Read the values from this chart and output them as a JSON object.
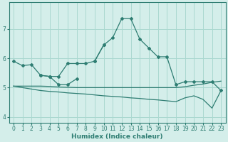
{
  "xlabel": "Humidex (Indice chaleur)",
  "bg_color": "#d4eeea",
  "grid_color": "#aad8d0",
  "line_color": "#2e7d72",
  "xlim": [
    -0.5,
    23.5
  ],
  "ylim": [
    3.8,
    7.9
  ],
  "yticks": [
    4,
    5,
    6,
    7
  ],
  "xticks": [
    0,
    1,
    2,
    3,
    4,
    5,
    6,
    7,
    8,
    9,
    10,
    11,
    12,
    13,
    14,
    15,
    16,
    17,
    18,
    19,
    20,
    21,
    22,
    23
  ],
  "series0_x": [
    0,
    1,
    2,
    3,
    4,
    5,
    6,
    7,
    8,
    9,
    10,
    11,
    12,
    13,
    14,
    15,
    16,
    17,
    18,
    19,
    20,
    21,
    22,
    23
  ],
  "series0_y": [
    5.9,
    5.75,
    5.78,
    5.42,
    5.38,
    5.38,
    5.82,
    5.82,
    5.82,
    5.9,
    6.45,
    6.7,
    7.35,
    7.35,
    6.65,
    6.35,
    6.05,
    6.05,
    5.1,
    5.2,
    5.2,
    5.2,
    5.2,
    4.9
  ],
  "series1_segments": [
    [
      [
        3,
        4,
        5,
        6,
        7
      ],
      [
        5.42,
        5.38,
        5.1,
        5.1,
        5.3
      ]
    ],
    [
      [
        9,
        10
      ],
      [
        5.9,
        6.45
      ]
    ]
  ],
  "series2_x": [
    0,
    1,
    2,
    3,
    4,
    5,
    6,
    7,
    8,
    9,
    10,
    11,
    12,
    13,
    14,
    15,
    16,
    17,
    18,
    19,
    20,
    21,
    22,
    23
  ],
  "series2_y": [
    5.05,
    5.05,
    5.05,
    5.05,
    5.04,
    5.02,
    5.01,
    5.0,
    5.0,
    5.0,
    5.0,
    5.0,
    5.0,
    5.0,
    5.0,
    5.0,
    5.0,
    5.0,
    5.0,
    5.03,
    5.08,
    5.12,
    5.18,
    5.22
  ],
  "series3_x": [
    0,
    1,
    2,
    3,
    4,
    5,
    6,
    7,
    8,
    9,
    10,
    11,
    12,
    13,
    14,
    15,
    16,
    17,
    18,
    19,
    20,
    21,
    22,
    23
  ],
  "series3_y": [
    5.05,
    5.0,
    4.95,
    4.9,
    4.87,
    4.85,
    4.82,
    4.8,
    4.78,
    4.75,
    4.72,
    4.7,
    4.68,
    4.65,
    4.63,
    4.6,
    4.58,
    4.55,
    4.52,
    4.65,
    4.72,
    4.6,
    4.3,
    4.9
  ]
}
